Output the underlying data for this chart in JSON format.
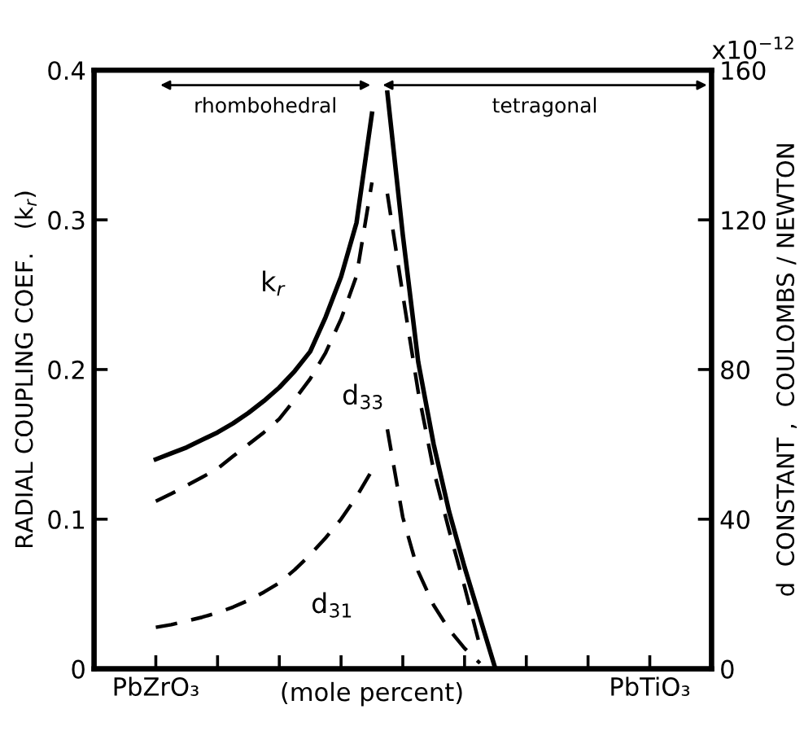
{
  "chart_data": {
    "type": "line",
    "xlabel": "(mole percent)",
    "ylabel": "RADIAL COUPLING COEF.   (k$_{r}$)",
    "y2label": "d  CONSTANT ,  COULOMBS / NEWTON",
    "categories": [
      null,
      null,
      null,
      null,
      "PbZrO₃",
      null,
      null,
      null,
      null,
      null,
      null,
      null,
      null,
      null,
      null,
      null,
      null,
      null,
      null,
      null,
      null,
      null,
      null,
      null,
      null,
      null,
      null,
      null,
      null,
      null,
      null,
      null,
      null,
      null,
      null,
      null,
      "PbTiO₃",
      null,
      null,
      null,
      null
    ],
    "ylim": [
      0,
      0.4
    ],
    "yticks": [
      0,
      0.1,
      0.2,
      0.3,
      0.4
    ],
    "y2lim": [
      0,
      160
    ],
    "y2ticks": [
      0,
      40,
      80,
      120,
      160
    ],
    "annotations": [
      "x10$^{−12}$",
      "rhombohedral",
      "tetragonal"
    ],
    "series": [
      {
        "name": "k$_{r}$",
        "color": "#000000",
        "line_style": "solid",
        "values": [
          null,
          null,
          null,
          null,
          0.14,
          0.144,
          0.148,
          0.153,
          0.158,
          0.164,
          0.171,
          0.179,
          0.188,
          0.199,
          0.212,
          0.235,
          0.262,
          0.298,
          0.371,
          null,
          null,
          null,
          null,
          null,
          null,
          null,
          null,
          null,
          null,
          null,
          null,
          null,
          null,
          null,
          null,
          null,
          null,
          null,
          null,
          null,
          null
        ]
      },
      {
        "color": "#000000",
        "line_style": "solid",
        "values": [
          null,
          null,
          null,
          null,
          null,
          null,
          null,
          null,
          null,
          null,
          null,
          null,
          null,
          null,
          null,
          null,
          null,
          null,
          null,
          0.385,
          0.29,
          0.205,
          0.15,
          0.105,
          0.068,
          0.034,
          0,
          null,
          null,
          null,
          null,
          null,
          null,
          null,
          null,
          null,
          null,
          null,
          null,
          null,
          null
        ]
      },
      {
        "name": "d$_{33}$",
        "color": "#000000",
        "line_style": "dashed",
        "axis": "y2",
        "values": [
          null,
          null,
          null,
          null,
          44.8,
          46.8,
          49,
          51.2,
          53.5,
          56.8,
          60,
          63.2,
          66.8,
          72,
          77.5,
          84.5,
          93.5,
          105,
          130,
          null,
          null,
          null,
          null,
          null,
          null,
          null,
          null,
          null,
          null,
          null,
          null,
          null,
          null,
          null,
          null,
          null,
          null,
          null,
          null,
          null,
          null
        ]
      },
      {
        "color": "#000000",
        "line_style": "dashed",
        "axis": "y2",
        "values": [
          null,
          null,
          null,
          null,
          null,
          null,
          null,
          null,
          null,
          null,
          null,
          null,
          null,
          null,
          null,
          null,
          null,
          null,
          null,
          127,
          100,
          74,
          53,
          37,
          22,
          6,
          null,
          null,
          null,
          null,
          null,
          null,
          null,
          null,
          null,
          null,
          null,
          null,
          null,
          null,
          null
        ]
      },
      {
        "name": "d$_{31}$",
        "color": "#000000",
        "line_style": "dashed",
        "axis": "y2",
        "values": [
          null,
          null,
          null,
          null,
          11.1,
          11.8,
          12.8,
          13.8,
          15,
          16.5,
          18.3,
          20.5,
          23,
          26.5,
          30.5,
          35,
          40,
          46,
          53,
          null,
          null,
          null,
          null,
          null,
          null,
          null,
          null,
          null,
          null,
          null,
          null,
          null,
          null,
          null,
          null,
          null,
          null,
          null,
          null,
          null,
          null
        ]
      },
      {
        "color": "#000000",
        "line_style": "dashed",
        "axis": "y2",
        "values": [
          null,
          null,
          null,
          null,
          null,
          null,
          null,
          null,
          null,
          null,
          null,
          null,
          null,
          null,
          null,
          null,
          null,
          null,
          null,
          64,
          40.5,
          26,
          17,
          10.5,
          5.5,
          1.5,
          null,
          null,
          null,
          null,
          null,
          null,
          null,
          null,
          null,
          null,
          null,
          null,
          null,
          null,
          null
        ]
      }
    ]
  }
}
